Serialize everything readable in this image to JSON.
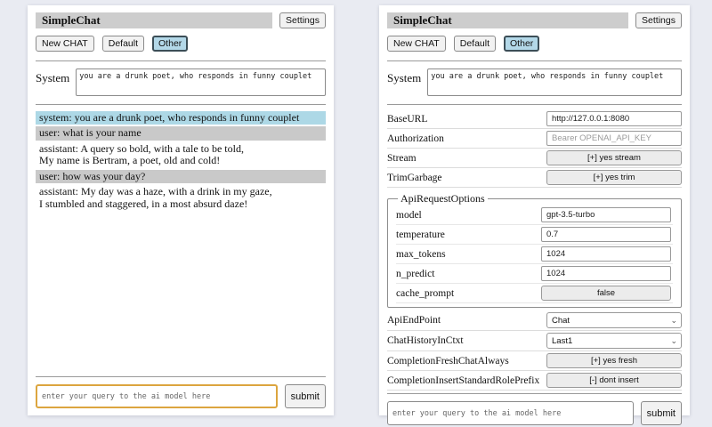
{
  "app": {
    "title": "SimpleChat",
    "settings_button": "Settings",
    "toolbar": {
      "new_chat": "New CHAT",
      "session_default": "Default",
      "session_other": "Other",
      "active_session": "Other"
    },
    "system_prompt": {
      "label": "System",
      "value": "you are a drunk poet, who responds in funny couplet"
    },
    "query": {
      "placeholder": "enter your query to the ai model here",
      "submit": "submit"
    }
  },
  "chat": {
    "messages": [
      {
        "role": "system",
        "text": "system: you are a drunk poet, who responds in funny couplet"
      },
      {
        "role": "user",
        "text": "user: what is your name"
      },
      {
        "role": "assistant",
        "text": "assistant: A query so bold, with a tale to be told,\nMy name is Bertram, a poet, old and cold!"
      },
      {
        "role": "user",
        "text": "user: how was your day?"
      },
      {
        "role": "assistant",
        "text": "assistant: My day was a haze, with a drink in my gaze,\nI stumbled and staggered, in a most absurd daze!"
      }
    ]
  },
  "settings": {
    "baseurl": {
      "label": "BaseURL",
      "value": "http://127.0.0.1:8080"
    },
    "authorization": {
      "label": "Authorization",
      "placeholder": "Bearer OPENAI_API_KEY"
    },
    "stream": {
      "label": "Stream",
      "button": "[+] yes stream"
    },
    "trim_garbage": {
      "label": "TrimGarbage",
      "button": "[+] yes trim"
    },
    "api_request_options": {
      "legend": "ApiRequestOptions",
      "model": {
        "label": "model",
        "value": "gpt-3.5-turbo"
      },
      "temperature": {
        "label": "temperature",
        "value": "0.7"
      },
      "max_tokens": {
        "label": "max_tokens",
        "value": "1024"
      },
      "n_predict": {
        "label": "n_predict",
        "value": "1024"
      },
      "cache_prompt": {
        "label": "cache_prompt",
        "button": "false"
      }
    },
    "api_endpoint": {
      "label": "ApiEndPoint",
      "value": "Chat"
    },
    "chat_history_in_ctxt": {
      "label": "ChatHistoryInCtxt",
      "value": "Last1"
    },
    "completion_fresh_chat_always": {
      "label": "CompletionFreshChatAlways",
      "button": "[+] yes fresh"
    },
    "completion_insert_standard_role_prefix": {
      "label": "CompletionInsertStandardRolePrefix",
      "button": "[-] dont insert"
    }
  },
  "icons": {
    "select_chevron": "chevron-down-icon"
  },
  "colors": {
    "page_background": "#e9ebf2",
    "titlebar_bg": "#cdcdcd",
    "active_session_bg": "#b3d8e8",
    "system_message_bg": "#add8e6",
    "user_message_bg": "#c9c9c9",
    "query_focus_border": "#dca53f"
  }
}
